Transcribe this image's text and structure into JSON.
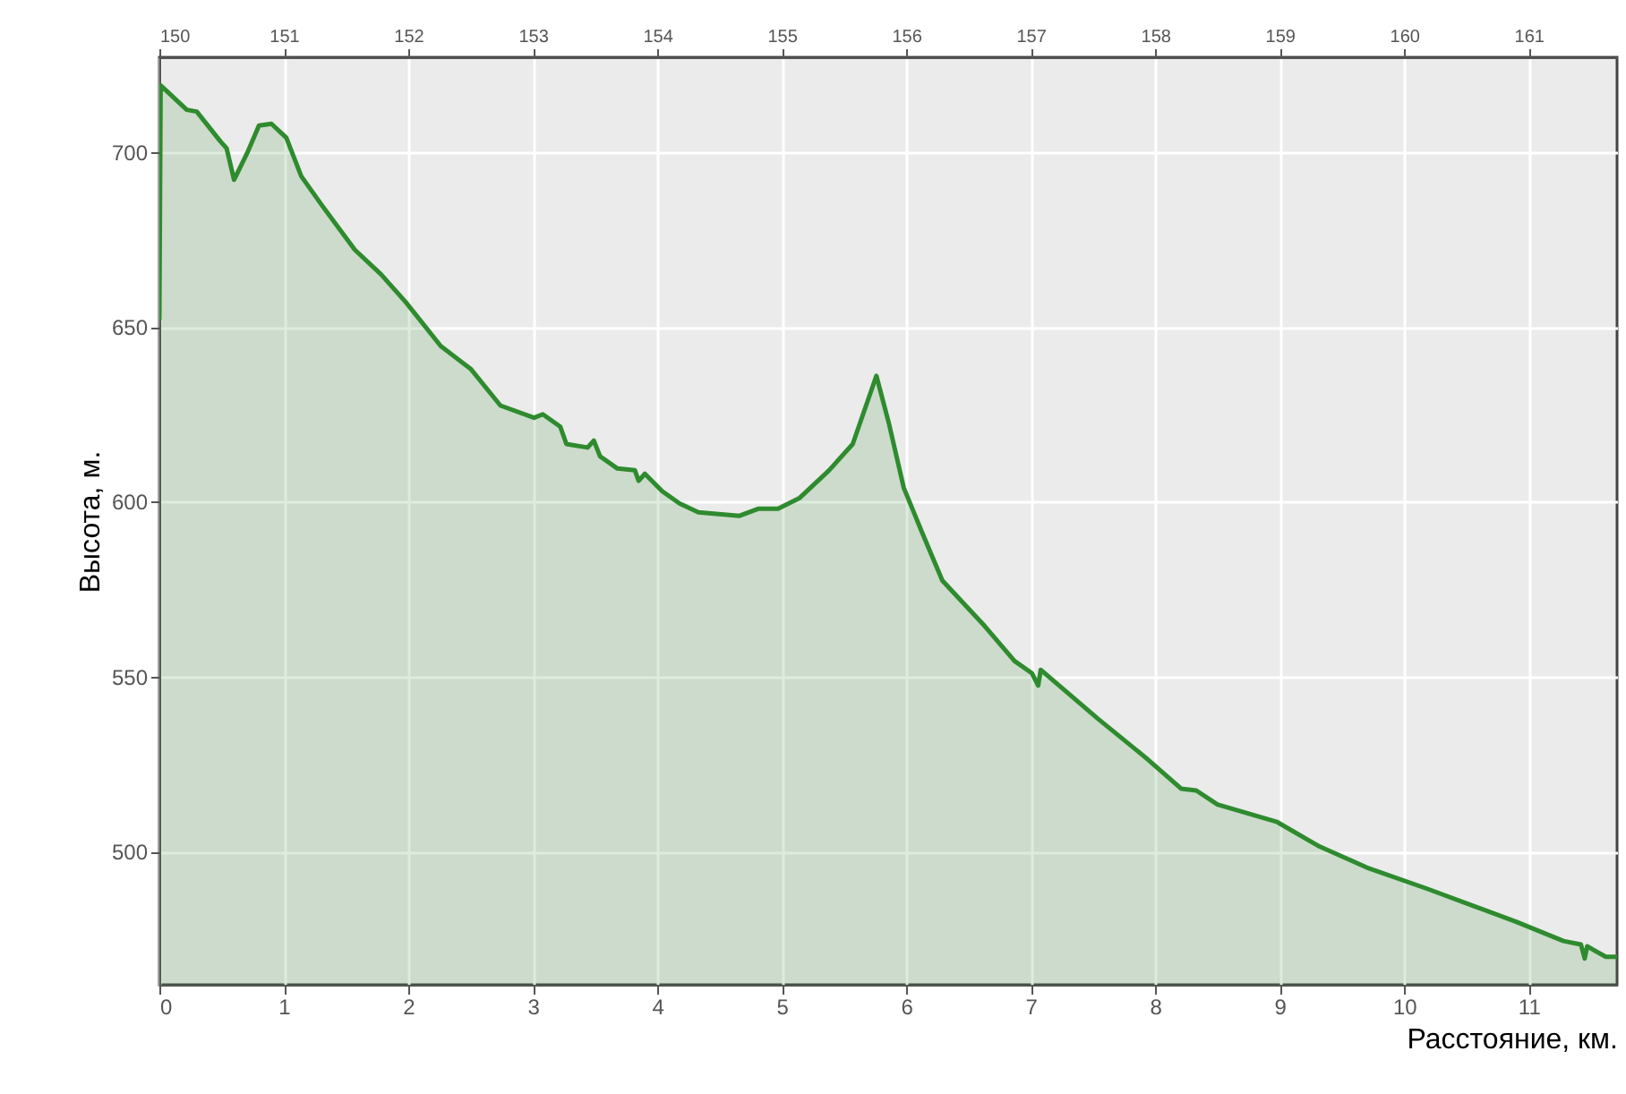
{
  "chart_data": {
    "type": "area",
    "xlabel": "Расстояние, км.",
    "ylabel": "Высота, м.",
    "x": [
      0,
      0.01,
      0.22,
      0.3,
      0.49,
      0.54,
      0.6,
      0.71,
      0.8,
      0.9,
      1.02,
      1.14,
      1.31,
      1.57,
      1.78,
      1.98,
      2.26,
      2.5,
      2.74,
      3.01,
      3.08,
      3.22,
      3.27,
      3.44,
      3.49,
      3.54,
      3.68,
      3.82,
      3.85,
      3.9,
      4.04,
      4.18,
      4.33,
      4.66,
      4.81,
      4.97,
      5.14,
      5.38,
      5.57,
      5.76,
      5.86,
      5.98,
      6.13,
      6.29,
      6.63,
      6.87,
      7.01,
      7.06,
      7.08,
      7.54,
      7.92,
      8.21,
      8.33,
      8.5,
      8.98,
      9.32,
      9.7,
      10.18,
      10.56,
      10.9,
      11.28,
      11.42,
      11.45,
      11.47,
      11.62,
      11.71
    ],
    "series": [
      {
        "color": "#2e8b2e",
        "values": [
          652,
          719,
          712,
          711.5,
          703,
          701,
          692,
          700,
          707.5,
          708,
          704,
          693,
          684.5,
          672,
          665,
          657,
          644.5,
          638,
          627.5,
          624,
          625,
          621.5,
          616.5,
          615.5,
          617.5,
          613,
          609.5,
          609,
          606,
          608,
          603,
          599.5,
          597,
          596,
          598,
          598,
          601,
          609,
          616.5,
          636,
          622.5,
          604,
          591,
          577.5,
          564.5,
          554.5,
          551,
          547.5,
          552,
          538,
          527,
          518,
          517.5,
          513.5,
          508.5,
          501.5,
          495.5,
          489.5,
          484.5,
          480,
          474.5,
          473.5,
          469.5,
          473,
          470,
          470
        ]
      }
    ],
    "xlim": [
      0,
      11.71
    ],
    "xticks": [
      0,
      1,
      2,
      3,
      4,
      5,
      6,
      7,
      8,
      9,
      10,
      11
    ],
    "x2lim": [
      150,
      161.71
    ],
    "x2ticks": [
      150,
      151,
      152,
      153,
      154,
      155,
      156,
      157,
      158,
      159,
      160,
      161
    ],
    "ylim": [
      462,
      727
    ],
    "yticks": [
      500,
      550,
      600,
      650,
      700
    ],
    "grid": true
  }
}
